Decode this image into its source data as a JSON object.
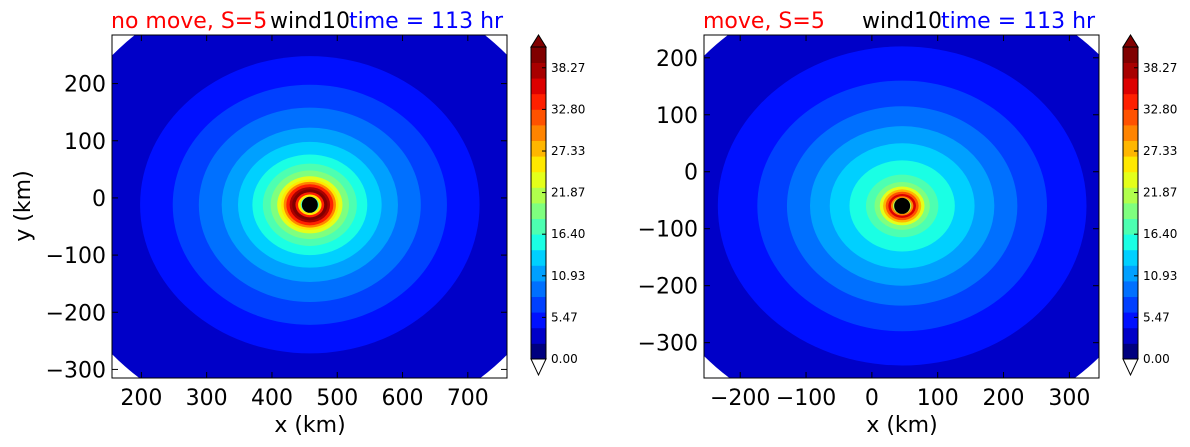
{
  "colorbar_ticks": [
    "0.00",
    "5.47",
    "10.93",
    "16.40",
    "21.87",
    "27.33",
    "32.80",
    "38.27"
  ],
  "colormap": [
    "#00007f",
    "#0000c8",
    "#0010ff",
    "#0040ff",
    "#0070ff",
    "#00a0ff",
    "#00d0ff",
    "#1affe4",
    "#4dffb1",
    "#7fff7f",
    "#b1ff4d",
    "#e4ff1a",
    "#ffe800",
    "#ffb600",
    "#ff8400",
    "#ff5200",
    "#ff2000",
    "#dc0000",
    "#a80000",
    "#800000"
  ],
  "title_colors": {
    "left": "#ff0000",
    "middle": "#000000",
    "right": "#0000ff"
  },
  "marker_color": "#000000",
  "chart_data": [
    {
      "type": "heatmap",
      "title_left": "no move, S=5",
      "title_mid": "wind10",
      "title_right": "time = 113 hr",
      "xlabel": "x (km)",
      "ylabel": "y (km)",
      "xlim": [
        155,
        760
      ],
      "ylim": [
        -315,
        285
      ],
      "xticks": [
        200,
        300,
        400,
        500,
        600,
        700
      ],
      "yticks": [
        -300,
        -200,
        -100,
        0,
        100,
        200
      ],
      "xtick_labels": [
        "200",
        "300",
        "400",
        "500",
        "600",
        "700"
      ],
      "ytick_labels": [
        "−300",
        "−200",
        "−100",
        "0",
        "100",
        "200"
      ],
      "center": [
        458,
        -12
      ],
      "colorbar_range": [
        0,
        41
      ],
      "rings": [
        {
          "value": 3,
          "r": 400
        },
        {
          "value": 6,
          "r": 260
        },
        {
          "value": 8,
          "r": 210
        },
        {
          "value": 10,
          "r": 170
        },
        {
          "value": 12,
          "r": 135
        },
        {
          "value": 14,
          "r": 110
        },
        {
          "value": 16,
          "r": 88
        },
        {
          "value": 18,
          "r": 72
        },
        {
          "value": 20,
          "r": 60
        },
        {
          "value": 23,
          "r": 50
        },
        {
          "value": 26,
          "r": 44
        },
        {
          "value": 30,
          "r": 40
        },
        {
          "value": 34,
          "r": 36
        },
        {
          "value": 38,
          "r": 31
        },
        {
          "value": 41,
          "r": 27
        },
        {
          "value": 34,
          "r": 22
        },
        {
          "value": 26,
          "r": 18
        },
        {
          "value": 17,
          "r": 14
        }
      ]
    },
    {
      "type": "heatmap",
      "title_left": "move, S=5",
      "title_mid": "wind10",
      "title_right": "time = 113 hr",
      "xlabel": "x (km)",
      "ylabel": "",
      "xlim": [
        -255,
        345
      ],
      "ylim": [
        -362,
        240
      ],
      "xticks": [
        -200,
        -100,
        0,
        100,
        200,
        300
      ],
      "yticks": [
        -300,
        -200,
        -100,
        0,
        100,
        200
      ],
      "xtick_labels": [
        "−200",
        "−100",
        "0",
        "100",
        "200",
        "300"
      ],
      "ytick_labels": [
        "−300",
        "−200",
        "−100",
        "0",
        "100",
        "200"
      ],
      "center": [
        46,
        -60
      ],
      "colorbar_range": [
        0,
        41
      ],
      "rings": [
        {
          "value": 3,
          "r": 400
        },
        {
          "value": 6,
          "r": 280
        },
        {
          "value": 8,
          "r": 220
        },
        {
          "value": 10,
          "r": 175
        },
        {
          "value": 12,
          "r": 140
        },
        {
          "value": 14,
          "r": 110
        },
        {
          "value": 16,
          "r": 80
        },
        {
          "value": 18,
          "r": 55
        },
        {
          "value": 20,
          "r": 42
        },
        {
          "value": 24,
          "r": 34
        },
        {
          "value": 28,
          "r": 29
        },
        {
          "value": 32,
          "r": 25
        },
        {
          "value": 36,
          "r": 21
        },
        {
          "value": 30,
          "r": 17
        },
        {
          "value": 22,
          "r": 14
        },
        {
          "value": 15,
          "r": 11
        }
      ]
    }
  ]
}
